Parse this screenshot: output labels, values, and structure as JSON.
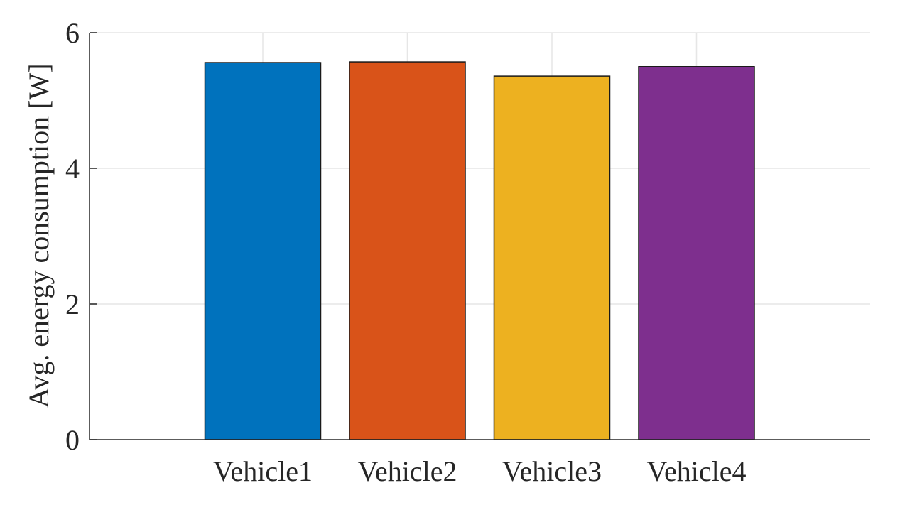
{
  "chart_data": {
    "type": "bar",
    "categories": [
      "Vehicle1",
      "Vehicle2",
      "Vehicle3",
      "Vehicle4"
    ],
    "values": [
      5.56,
      5.57,
      5.36,
      5.5
    ],
    "colors": [
      "#0072bd",
      "#d95319",
      "#edb120",
      "#7e2f8e"
    ],
    "title": "",
    "xlabel": "",
    "ylabel": "Avg. energy consumption [W]",
    "ylim": [
      0,
      6
    ],
    "yticks": [
      0,
      2,
      4,
      6
    ],
    "ytick_labels": [
      "0",
      "2",
      "4",
      "6"
    ],
    "grid": true,
    "legend": "none"
  }
}
